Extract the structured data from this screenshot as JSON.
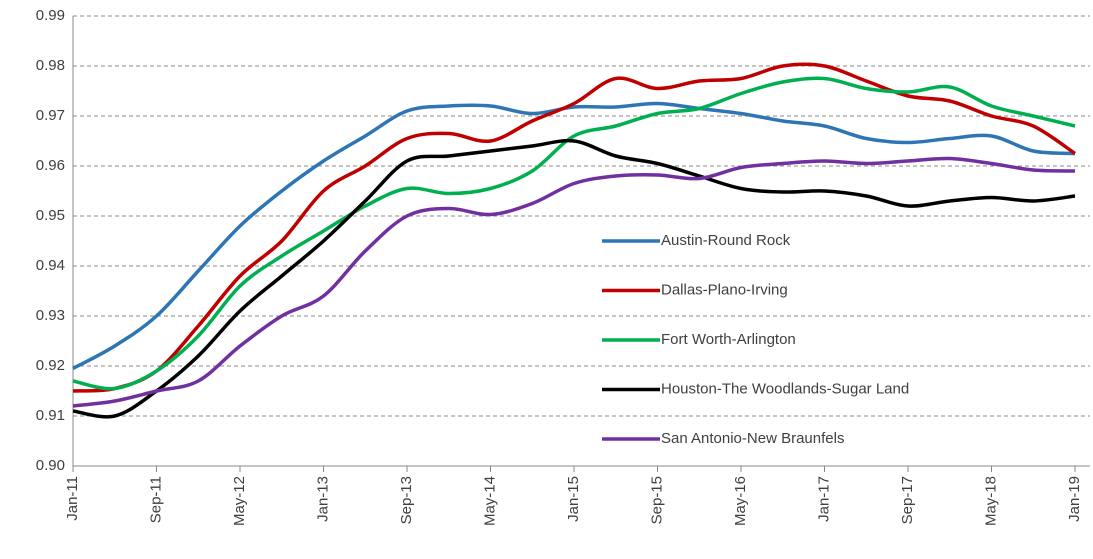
{
  "chart_data": {
    "type": "line",
    "x": [
      "Jan-11",
      null,
      "Sep-11",
      null,
      "May-12",
      null,
      "Jan-13",
      null,
      "Sep-13",
      null,
      "May-14",
      null,
      "Jan-15",
      null,
      "Sep-15",
      null,
      "May-16",
      null,
      "Jan-17",
      null,
      "Sep-17",
      null,
      "May-18",
      null,
      "Jan-19"
    ],
    "series": [
      {
        "name": "Austin-Round Rock",
        "color": "#2e75b6",
        "values": [
          0.9195,
          0.924,
          0.93,
          0.939,
          0.948,
          0.955,
          0.961,
          0.966,
          0.971,
          0.972,
          0.972,
          0.9705,
          0.9718,
          0.9718,
          0.9725,
          0.9715,
          0.9705,
          0.969,
          0.968,
          0.9655,
          0.9647,
          0.9655,
          0.966,
          0.963,
          0.9625
        ]
      },
      {
        "name": "Dallas-Plano-Irving",
        "color": "#c00000",
        "values": [
          0.915,
          0.9155,
          0.919,
          0.928,
          0.938,
          0.945,
          0.955,
          0.96,
          0.9655,
          0.9665,
          0.965,
          0.969,
          0.9725,
          0.9775,
          0.9755,
          0.977,
          0.9775,
          0.98,
          0.98,
          0.977,
          0.974,
          0.973,
          0.97,
          0.968,
          0.9625
        ]
      },
      {
        "name": "Fort Worth-Arlington",
        "color": "#00b050",
        "values": [
          0.917,
          0.9155,
          0.919,
          0.926,
          0.936,
          0.942,
          0.947,
          0.952,
          0.9555,
          0.9545,
          0.9555,
          0.959,
          0.966,
          0.968,
          0.9705,
          0.9715,
          0.9745,
          0.9768,
          0.9775,
          0.9755,
          0.9748,
          0.9758,
          0.972,
          0.97,
          0.968
        ]
      },
      {
        "name": "Houston-The Woodlands-Sugar Land",
        "color": "#000000",
        "values": [
          0.911,
          0.91,
          0.915,
          0.922,
          0.931,
          0.938,
          0.945,
          0.953,
          0.961,
          0.962,
          0.963,
          0.964,
          0.965,
          0.962,
          0.9605,
          0.958,
          0.9555,
          0.9548,
          0.955,
          0.954,
          0.952,
          0.953,
          0.9537,
          0.953,
          0.954
        ]
      },
      {
        "name": "San Antonio-New Braunfels",
        "color": "#7030a0",
        "values": [
          0.912,
          0.913,
          0.915,
          0.917,
          0.924,
          0.93,
          0.934,
          0.943,
          0.95,
          0.9515,
          0.9503,
          0.9525,
          0.9565,
          0.958,
          0.9582,
          0.9575,
          0.9597,
          0.9605,
          0.961,
          0.9605,
          0.961,
          0.9615,
          0.9605,
          0.9592,
          0.959
        ]
      }
    ],
    "ylim": [
      0.9,
      0.99
    ],
    "yticks": [
      {
        "value": 0.9,
        "label": "0.90"
      },
      0.91,
      0.92,
      0.93,
      0.94,
      0.95,
      0.96,
      0.97,
      0.98,
      0.99
    ],
    "grid": true,
    "legend": "inside"
  }
}
